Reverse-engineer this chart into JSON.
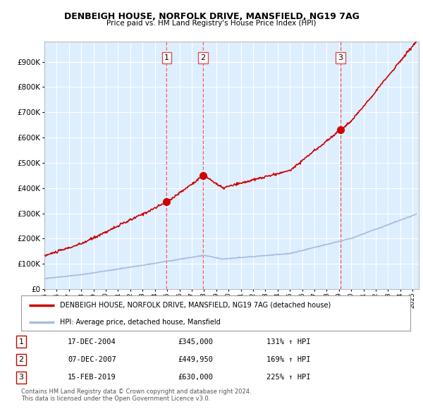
{
  "title": "DENBEIGH HOUSE, NORFOLK DRIVE, MANSFIELD, NG19 7AG",
  "subtitle": "Price paid vs. HM Land Registry's House Price Index (HPI)",
  "ylabel_vals": [
    0,
    100000,
    200000,
    300000,
    400000,
    500000,
    600000,
    700000,
    800000,
    900000
  ],
  "ylim": [
    0,
    980000
  ],
  "xlim_start": 1995.0,
  "xlim_end": 2025.5,
  "background_color": "#ddeeff",
  "grid_color": "#ffffff",
  "sale_dates": [
    2004.96,
    2007.93,
    2019.12
  ],
  "sale_prices": [
    345000,
    449950,
    630000
  ],
  "sale_labels": [
    "1",
    "2",
    "3"
  ],
  "vline_color": "#e05050",
  "red_line_color": "#cc0000",
  "blue_line_color": "#aabbdd",
  "legend_label_red": "DENBEIGH HOUSE, NORFOLK DRIVE, MANSFIELD, NG19 7AG (detached house)",
  "legend_label_blue": "HPI: Average price, detached house, Mansfield",
  "table_entries": [
    {
      "num": "1",
      "date": "17-DEC-2004",
      "price": "£345,000",
      "pct": "131% ↑ HPI"
    },
    {
      "num": "2",
      "date": "07-DEC-2007",
      "price": "£449,950",
      "pct": "169% ↑ HPI"
    },
    {
      "num": "3",
      "date": "15-FEB-2019",
      "price": "£630,000",
      "pct": "225% ↑ HPI"
    }
  ],
  "footer": "Contains HM Land Registry data © Crown copyright and database right 2024.\nThis data is licensed under the Open Government Licence v3.0.",
  "xticks": [
    1995,
    1996,
    1997,
    1998,
    1999,
    2000,
    2001,
    2002,
    2003,
    2004,
    2005,
    2006,
    2007,
    2008,
    2009,
    2010,
    2011,
    2012,
    2013,
    2014,
    2015,
    2016,
    2017,
    2018,
    2019,
    2020,
    2021,
    2022,
    2023,
    2024,
    2025
  ]
}
